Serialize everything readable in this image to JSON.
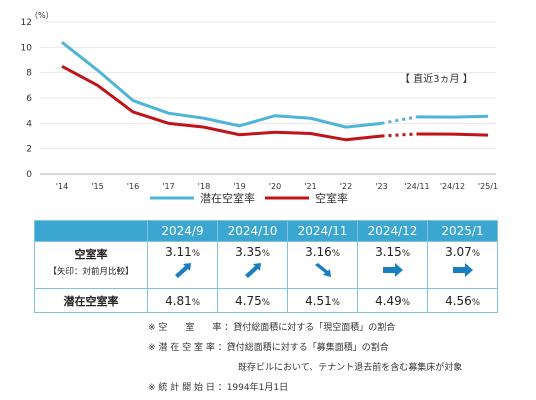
{
  "chart_data": {
    "type": "line",
    "unit_label": "（%）",
    "categories": [
      "'14",
      "'15",
      "'16",
      "'17",
      "'18",
      "'19",
      "'20",
      "'21",
      "'22",
      "'23",
      "'24/11",
      "'24/12",
      "'25/1"
    ],
    "ylim": [
      0,
      12
    ],
    "yticks": [
      "0",
      "2",
      "4",
      "6",
      "8",
      "10",
      "12"
    ],
    "annotation": "【 直近3ヵ月 】",
    "series": [
      {
        "name": "潜在空室率",
        "color": "#4fb4d8",
        "values": [
          10.4,
          8.2,
          5.8,
          4.8,
          4.4,
          3.8,
          4.6,
          4.4,
          3.7,
          4.0,
          4.51,
          4.49,
          4.56
        ]
      },
      {
        "name": "空室率",
        "color": "#c0141b",
        "values": [
          8.5,
          7.0,
          4.9,
          4.0,
          3.7,
          3.1,
          3.3,
          3.2,
          2.7,
          3.0,
          3.16,
          3.15,
          3.07
        ]
      }
    ]
  },
  "table": {
    "headers": [
      "2024/9",
      "2024/10",
      "2024/11",
      "2024/12",
      "2025/1"
    ],
    "vacancy_label": "空室率",
    "vacancy_sublabel": "【矢印：対前月比較】",
    "vacancy": [
      {
        "num": "3.11",
        "unit": "%",
        "trend": "up"
      },
      {
        "num": "3.35",
        "unit": "%",
        "trend": "up"
      },
      {
        "num": "3.16",
        "unit": "%",
        "trend": "down"
      },
      {
        "num": "3.15",
        "unit": "%",
        "trend": "flat"
      },
      {
        "num": "3.07",
        "unit": "%",
        "trend": "flat"
      }
    ],
    "potential_label": "潜在空室率",
    "potential": [
      {
        "num": "4.81",
        "unit": "%"
      },
      {
        "num": "4.75",
        "unit": "%"
      },
      {
        "num": "4.51",
        "unit": "%"
      },
      {
        "num": "4.49",
        "unit": "%"
      },
      {
        "num": "4.56",
        "unit": "%"
      }
    ],
    "arrow_color": "#1a7fc1"
  },
  "notes": [
    "※ 空　　室　　率 ：貸付総面積に対する「現空面積」の割合",
    "※ 潜 在 空 室 率 ：貸付総面積に対する「募集面積」の割合",
    "　　　　　　　　　　既存ビルにおいて、テナント退去前を含む募集床が対象",
    "※ 統 計 開 始 日 ：1994年1月1日"
  ]
}
